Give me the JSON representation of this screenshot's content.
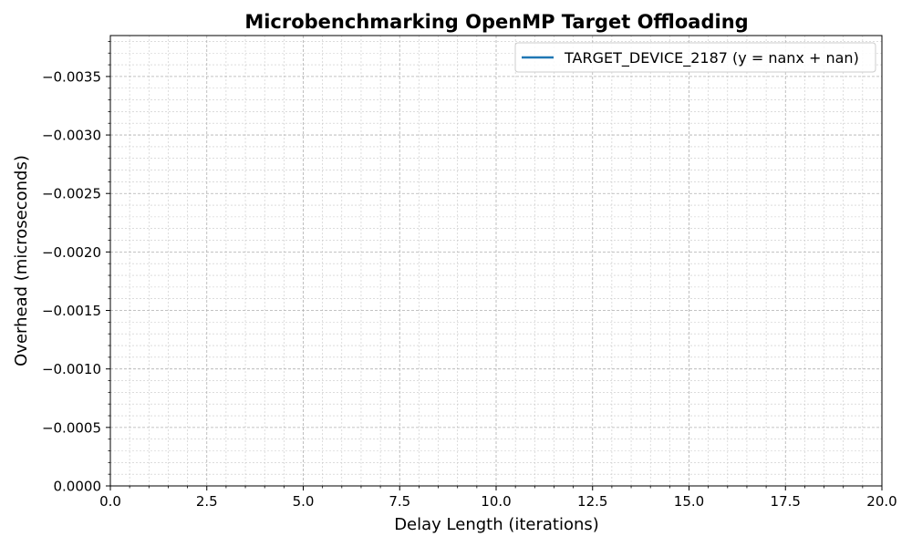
{
  "chart_data": {
    "type": "line",
    "title": "Microbenchmarking OpenMP Target Offloading",
    "xlabel": "Delay Length (iterations)",
    "ylabel": "Overhead (microseconds)",
    "xlim": [
      0,
      20
    ],
    "ylim": [
      0,
      -0.00385
    ],
    "y_inverted": true,
    "x_ticks": [
      0,
      2.5,
      5,
      7.5,
      10,
      12.5,
      15,
      17.5,
      20
    ],
    "x_tick_labels": [
      "0.0",
      "2.5",
      "5.0",
      "7.5",
      "10.0",
      "12.5",
      "15.0",
      "17.5",
      "20.0"
    ],
    "y_ticks": [
      0,
      -0.0005,
      -0.001,
      -0.0015,
      -0.002,
      -0.0025,
      -0.003,
      -0.0035
    ],
    "y_tick_labels": [
      "0.0000",
      "−0.0005",
      "−0.0010",
      "−0.0015",
      "−0.0020",
      "−0.0025",
      "−0.0030",
      "−0.0035"
    ],
    "grid": "major and minor, dashed",
    "legend_position": "top-right",
    "series": [
      {
        "name": "TARGET_DEVICE_2187 (y = nanx + nan)",
        "color": "#1f77b4",
        "x": [],
        "y": []
      }
    ]
  }
}
